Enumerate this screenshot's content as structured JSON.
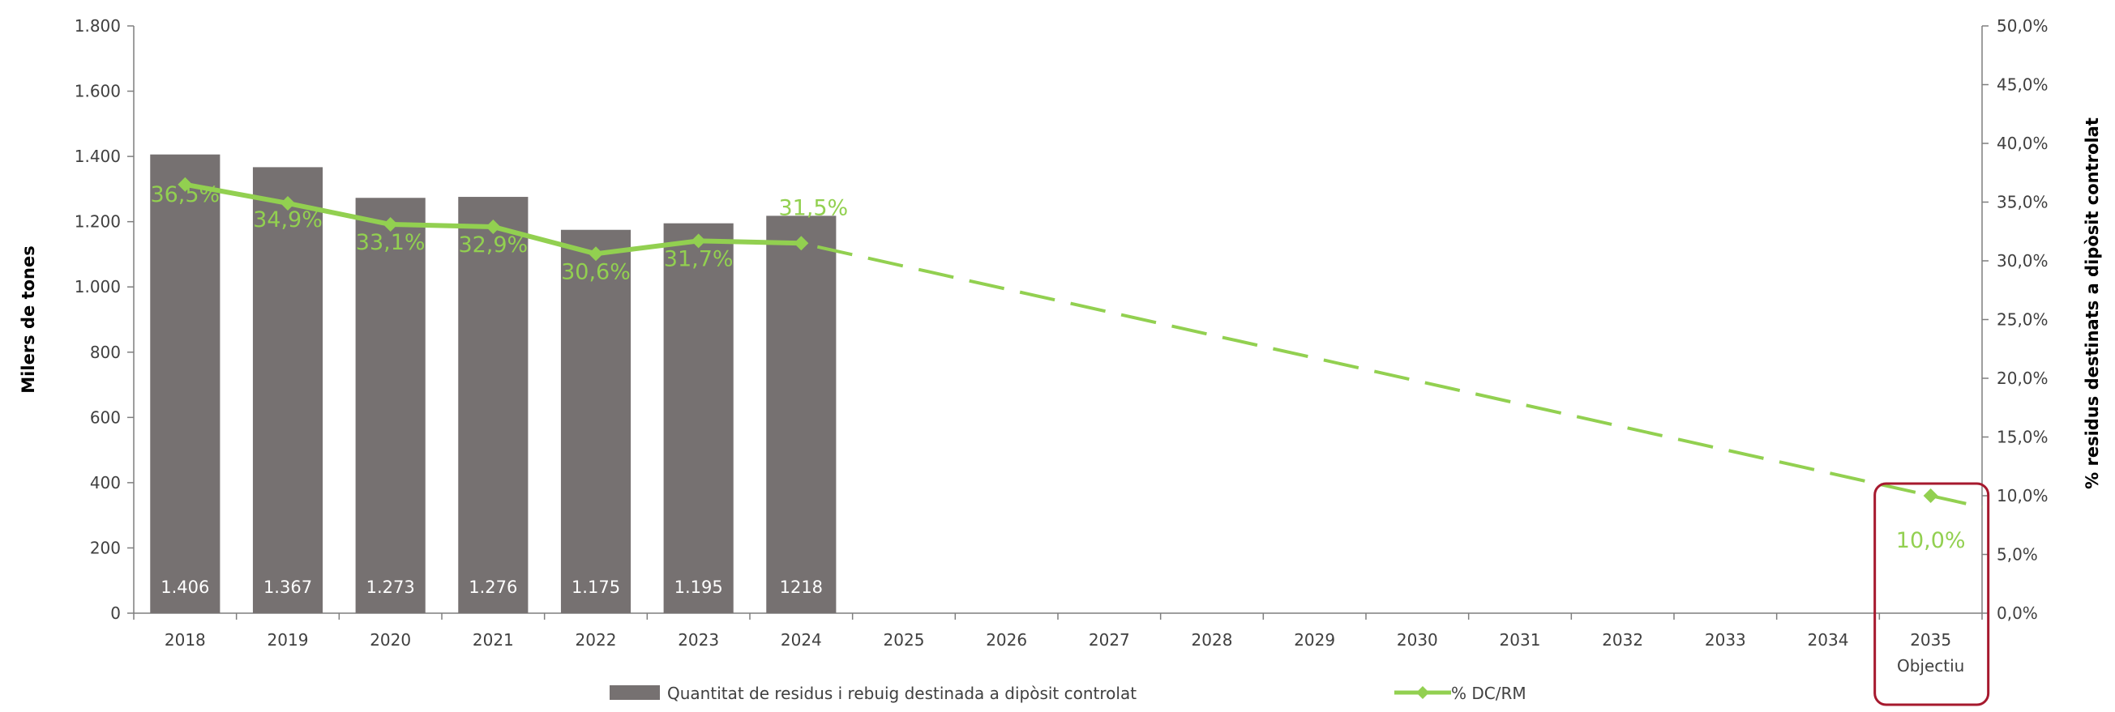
{
  "chart_data": {
    "type": "bar",
    "categories": [
      "2018",
      "2019",
      "2020",
      "2021",
      "2022",
      "2023",
      "2024",
      "2025",
      "2026",
      "2027",
      "2028",
      "2029",
      "2030",
      "2031",
      "2032",
      "2033",
      "2034",
      "2035"
    ],
    "category_sublabels": {
      "2035": "Objectiu"
    },
    "series": [
      {
        "name": "Quantitat de residus i rebuig destinada a dipòsit controlat",
        "type": "bar",
        "axis": "left",
        "color": "#767171",
        "values": [
          1406,
          1367,
          1273,
          1276,
          1175,
          1195,
          1218,
          null,
          null,
          null,
          null,
          null,
          null,
          null,
          null,
          null,
          null,
          null
        ],
        "data_labels": [
          "1.406",
          "1.367",
          "1.273",
          "1.276",
          "1.175",
          "1.195",
          "1218"
        ]
      },
      {
        "name": "% DC/RM",
        "type": "line",
        "axis": "right",
        "color": "#92d050",
        "values": [
          36.5,
          34.9,
          33.1,
          32.9,
          30.6,
          31.7,
          31.5,
          null,
          null,
          null,
          null,
          null,
          null,
          null,
          null,
          null,
          null,
          10.0
        ],
        "data_labels": [
          "36,5%",
          "34,9%",
          "33,1%",
          "32,9%",
          "30,6%",
          "31,7%",
          "31,5%",
          "10,0%"
        ],
        "projection": {
          "from": "2024",
          "from_value": 31.5,
          "to": "2035",
          "to_value": 10.0,
          "style": "dashed"
        }
      }
    ],
    "y_left": {
      "label": "Milers de tones",
      "range": [
        0,
        1800
      ],
      "ticks": [
        0,
        200,
        400,
        600,
        800,
        1000,
        1200,
        1400,
        1600,
        1800
      ],
      "tick_labels": [
        "0",
        "200",
        "400",
        "600",
        "800",
        "1.000",
        "1.200",
        "1.400",
        "1.600",
        "1.800"
      ]
    },
    "y_right": {
      "label": "% residus destinats a dipòsit controlat",
      "range": [
        0,
        50
      ],
      "ticks": [
        0,
        5,
        10,
        15,
        20,
        25,
        30,
        35,
        40,
        45,
        50
      ],
      "tick_labels": [
        "0,0%",
        "5,0%",
        "10,0%",
        "15,0%",
        "20,0%",
        "25,0%",
        "30,0%",
        "35,0%",
        "40,0%",
        "45,0%",
        "50,0%"
      ]
    },
    "highlight": {
      "category": "2035",
      "color": "#a6192e"
    },
    "legend": {
      "position": "bottom"
    },
    "grid": false
  }
}
